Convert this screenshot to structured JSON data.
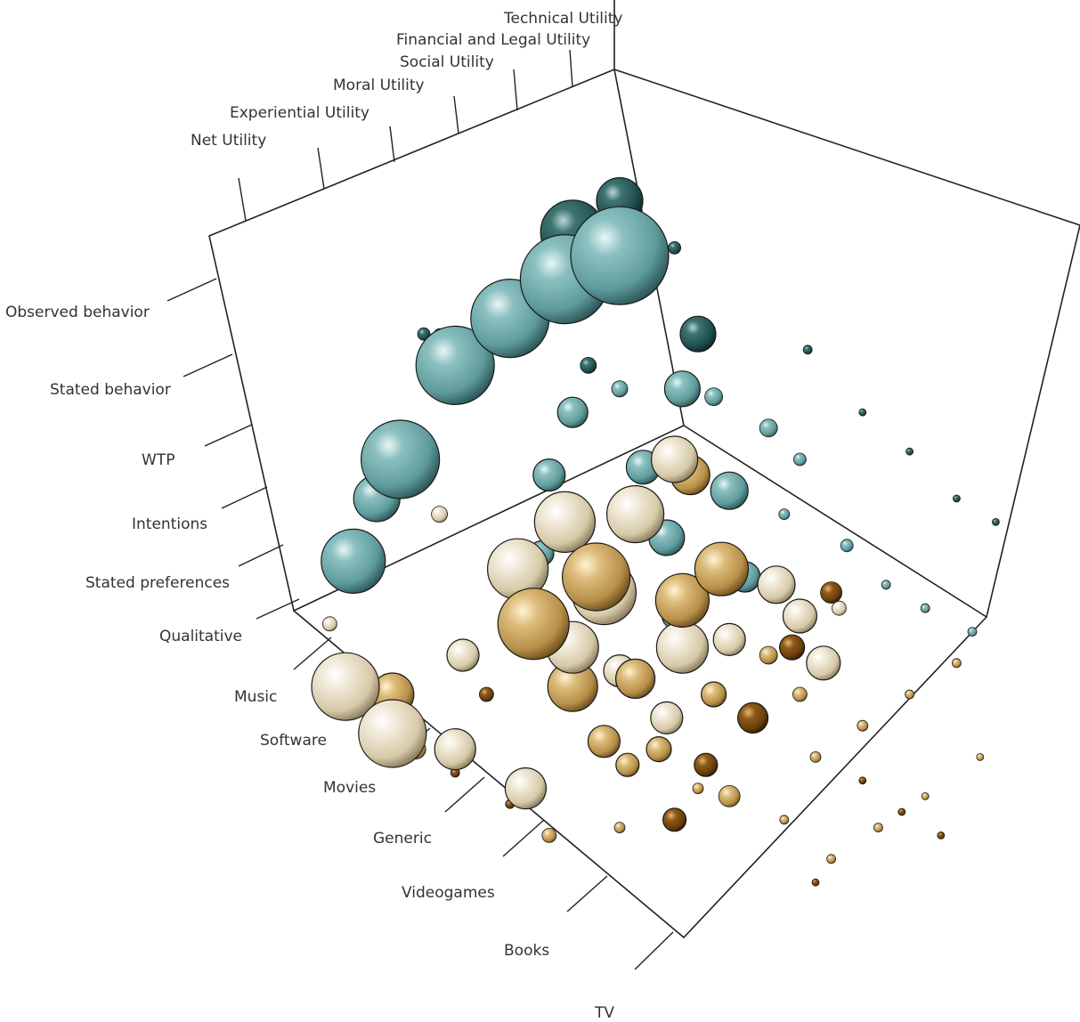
{
  "chart_data": {
    "type": "scatter",
    "projection": "3d-bubble",
    "title": "",
    "utility_axis": {
      "label": "",
      "ticks": [
        "Net Utility",
        "Experiential Utility",
        "Moral Utility",
        "Social Utility",
        "Financial and Legal Utility",
        "Technical Utility"
      ]
    },
    "method_axis": {
      "label": "",
      "ticks": [
        "Observed behavior",
        "Stated behavior",
        "WTP",
        "Intentions",
        "Stated preferences",
        "Qualitative"
      ]
    },
    "product_axis": {
      "label": "",
      "ticks": [
        "Music",
        "Software",
        "Movies",
        "Generic",
        "Videogames",
        "Books",
        "TV"
      ]
    },
    "colors": {
      "teal": "#6fa8a8",
      "teal_dark": "#1f4f4d",
      "cream": "#e6dcc4",
      "gold": "#c9a462",
      "brown": "#7a4a10"
    },
    "bubbles": [
      {
        "x": 0.11,
        "y": 0.58,
        "r": 36,
        "c": "teal"
      },
      {
        "x": 0.17,
        "y": 0.45,
        "r": 44,
        "c": "teal"
      },
      {
        "x": 0.24,
        "y": 0.33,
        "r": 44,
        "c": "teal"
      },
      {
        "x": 0.31,
        "y": 0.27,
        "r": 44,
        "c": "teal"
      },
      {
        "x": 0.38,
        "y": 0.22,
        "r": 50,
        "c": "teal"
      },
      {
        "x": 0.45,
        "y": 0.19,
        "r": 55,
        "c": "teal"
      },
      {
        "x": 0.39,
        "y": 0.16,
        "r": 36,
        "c": "teal_dark"
      },
      {
        "x": 0.45,
        "y": 0.12,
        "r": 26,
        "c": "teal_dark"
      },
      {
        "x": 0.14,
        "y": 0.5,
        "r": 26,
        "c": "teal"
      },
      {
        "x": 0.55,
        "y": 0.29,
        "r": 20,
        "c": "teal_dark"
      },
      {
        "x": 0.53,
        "y": 0.36,
        "r": 20,
        "c": "teal"
      },
      {
        "x": 0.59,
        "y": 0.49,
        "r": 21,
        "c": "teal"
      },
      {
        "x": 0.61,
        "y": 0.6,
        "r": 17,
        "c": "teal"
      },
      {
        "x": 0.51,
        "y": 0.55,
        "r": 20,
        "c": "teal"
      },
      {
        "x": 0.36,
        "y": 0.47,
        "r": 18,
        "c": "teal"
      },
      {
        "x": 0.48,
        "y": 0.46,
        "r": 19,
        "c": "teal"
      },
      {
        "x": 0.39,
        "y": 0.39,
        "r": 17,
        "c": "teal"
      },
      {
        "x": 0.35,
        "y": 0.57,
        "r": 14,
        "c": "teal"
      },
      {
        "x": 0.52,
        "y": 0.65,
        "r": 14,
        "c": "teal"
      },
      {
        "x": 0.4,
        "y": 0.6,
        "r": 12,
        "c": "teal"
      },
      {
        "x": 0.3,
        "y": 0.6,
        "r": 10,
        "c": "teal"
      },
      {
        "x": 0.45,
        "y": 0.36,
        "r": 9,
        "c": "teal"
      },
      {
        "x": 0.2,
        "y": 0.29,
        "r": 7,
        "c": "teal_dark"
      },
      {
        "x": 0.41,
        "y": 0.33,
        "r": 9,
        "c": "teal_dark"
      },
      {
        "x": 0.22,
        "y": 0.29,
        "r": 6,
        "c": "teal"
      },
      {
        "x": 0.52,
        "y": 0.18,
        "r": 7,
        "c": "teal_dark"
      },
      {
        "x": 0.57,
        "y": 0.37,
        "r": 10,
        "c": "teal"
      },
      {
        "x": 0.64,
        "y": 0.41,
        "r": 10,
        "c": "teal"
      },
      {
        "x": 0.68,
        "y": 0.45,
        "r": 7,
        "c": "teal"
      },
      {
        "x": 0.66,
        "y": 0.52,
        "r": 6,
        "c": "teal"
      },
      {
        "x": 0.74,
        "y": 0.56,
        "r": 7,
        "c": "teal"
      },
      {
        "x": 0.79,
        "y": 0.61,
        "r": 5,
        "c": "teal"
      },
      {
        "x": 0.84,
        "y": 0.64,
        "r": 5,
        "c": "teal"
      },
      {
        "x": 0.9,
        "y": 0.67,
        "r": 5,
        "c": "teal"
      },
      {
        "x": 0.69,
        "y": 0.31,
        "r": 5,
        "c": "teal_dark"
      },
      {
        "x": 0.76,
        "y": 0.39,
        "r": 4,
        "c": "teal_dark"
      },
      {
        "x": 0.82,
        "y": 0.44,
        "r": 4,
        "c": "teal_dark"
      },
      {
        "x": 0.88,
        "y": 0.5,
        "r": 4,
        "c": "teal_dark"
      },
      {
        "x": 0.93,
        "y": 0.53,
        "r": 4,
        "c": "teal_dark"
      },
      {
        "x": 0.38,
        "y": 0.53,
        "r": 34,
        "c": "cream"
      },
      {
        "x": 0.32,
        "y": 0.59,
        "r": 34,
        "c": "cream"
      },
      {
        "x": 0.43,
        "y": 0.62,
        "r": 36,
        "c": "cream"
      },
      {
        "x": 0.47,
        "y": 0.52,
        "r": 32,
        "c": "cream"
      },
      {
        "x": 0.52,
        "y": 0.45,
        "r": 26,
        "c": "cream"
      },
      {
        "x": 0.1,
        "y": 0.74,
        "r": 38,
        "c": "cream"
      },
      {
        "x": 0.16,
        "y": 0.8,
        "r": 38,
        "c": "cream"
      },
      {
        "x": 0.39,
        "y": 0.69,
        "r": 29,
        "c": "cream"
      },
      {
        "x": 0.53,
        "y": 0.69,
        "r": 29,
        "c": "cream"
      },
      {
        "x": 0.59,
        "y": 0.68,
        "r": 18,
        "c": "cream"
      },
      {
        "x": 0.65,
        "y": 0.61,
        "r": 21,
        "c": "cream"
      },
      {
        "x": 0.68,
        "y": 0.65,
        "r": 19,
        "c": "cream"
      },
      {
        "x": 0.71,
        "y": 0.71,
        "r": 19,
        "c": "cream"
      },
      {
        "x": 0.24,
        "y": 0.82,
        "r": 23,
        "c": "cream"
      },
      {
        "x": 0.33,
        "y": 0.87,
        "r": 23,
        "c": "cream"
      },
      {
        "x": 0.45,
        "y": 0.72,
        "r": 18,
        "c": "cream"
      },
      {
        "x": 0.51,
        "y": 0.78,
        "r": 18,
        "c": "cream"
      },
      {
        "x": 0.25,
        "y": 0.7,
        "r": 18,
        "c": "cream"
      },
      {
        "x": 0.22,
        "y": 0.52,
        "r": 9,
        "c": "cream"
      },
      {
        "x": 0.08,
        "y": 0.66,
        "r": 8,
        "c": "cream"
      },
      {
        "x": 0.73,
        "y": 0.64,
        "r": 8,
        "c": "cream"
      },
      {
        "x": 0.34,
        "y": 0.66,
        "r": 40,
        "c": "gold"
      },
      {
        "x": 0.42,
        "y": 0.6,
        "r": 38,
        "c": "gold"
      },
      {
        "x": 0.39,
        "y": 0.74,
        "r": 28,
        "c": "gold"
      },
      {
        "x": 0.47,
        "y": 0.73,
        "r": 22,
        "c": "gold"
      },
      {
        "x": 0.53,
        "y": 0.63,
        "r": 30,
        "c": "gold"
      },
      {
        "x": 0.58,
        "y": 0.59,
        "r": 30,
        "c": "gold"
      },
      {
        "x": 0.54,
        "y": 0.47,
        "r": 22,
        "c": "gold"
      },
      {
        "x": 0.16,
        "y": 0.75,
        "r": 24,
        "c": "gold"
      },
      {
        "x": 0.43,
        "y": 0.81,
        "r": 18,
        "c": "gold"
      },
      {
        "x": 0.5,
        "y": 0.82,
        "r": 14,
        "c": "gold"
      },
      {
        "x": 0.46,
        "y": 0.84,
        "r": 13,
        "c": "gold"
      },
      {
        "x": 0.57,
        "y": 0.75,
        "r": 14,
        "c": "gold"
      },
      {
        "x": 0.64,
        "y": 0.7,
        "r": 10,
        "c": "gold"
      },
      {
        "x": 0.68,
        "y": 0.75,
        "r": 8,
        "c": "gold"
      },
      {
        "x": 0.59,
        "y": 0.88,
        "r": 12,
        "c": "gold"
      },
      {
        "x": 0.19,
        "y": 0.82,
        "r": 11,
        "c": "gold"
      },
      {
        "x": 0.36,
        "y": 0.93,
        "r": 8,
        "c": "gold"
      },
      {
        "x": 0.45,
        "y": 0.92,
        "r": 6,
        "c": "gold"
      },
      {
        "x": 0.55,
        "y": 0.87,
        "r": 6,
        "c": "gold"
      },
      {
        "x": 0.7,
        "y": 0.83,
        "r": 6,
        "c": "gold"
      },
      {
        "x": 0.76,
        "y": 0.79,
        "r": 6,
        "c": "gold"
      },
      {
        "x": 0.82,
        "y": 0.75,
        "r": 5,
        "c": "gold"
      },
      {
        "x": 0.88,
        "y": 0.71,
        "r": 5,
        "c": "gold"
      },
      {
        "x": 0.66,
        "y": 0.91,
        "r": 5,
        "c": "gold"
      },
      {
        "x": 0.72,
        "y": 0.96,
        "r": 5,
        "c": "gold"
      },
      {
        "x": 0.78,
        "y": 0.92,
        "r": 5,
        "c": "gold"
      },
      {
        "x": 0.84,
        "y": 0.88,
        "r": 4,
        "c": "gold"
      },
      {
        "x": 0.91,
        "y": 0.83,
        "r": 4,
        "c": "gold"
      },
      {
        "x": 0.72,
        "y": 0.62,
        "r": 12,
        "c": "brown"
      },
      {
        "x": 0.67,
        "y": 0.69,
        "r": 14,
        "c": "brown"
      },
      {
        "x": 0.62,
        "y": 0.78,
        "r": 17,
        "c": "brown"
      },
      {
        "x": 0.56,
        "y": 0.84,
        "r": 13,
        "c": "brown"
      },
      {
        "x": 0.52,
        "y": 0.91,
        "r": 13,
        "c": "brown"
      },
      {
        "x": 0.48,
        "y": 0.73,
        "r": 7,
        "c": "brown"
      },
      {
        "x": 0.28,
        "y": 0.75,
        "r": 8,
        "c": "brown"
      },
      {
        "x": 0.24,
        "y": 0.85,
        "r": 5,
        "c": "brown"
      },
      {
        "x": 0.31,
        "y": 0.89,
        "r": 5,
        "c": "brown"
      },
      {
        "x": 0.76,
        "y": 0.86,
        "r": 4,
        "c": "brown"
      },
      {
        "x": 0.81,
        "y": 0.9,
        "r": 4,
        "c": "brown"
      },
      {
        "x": 0.86,
        "y": 0.93,
        "r": 4,
        "c": "brown"
      },
      {
        "x": 0.7,
        "y": 0.99,
        "r": 4,
        "c": "brown"
      }
    ]
  }
}
